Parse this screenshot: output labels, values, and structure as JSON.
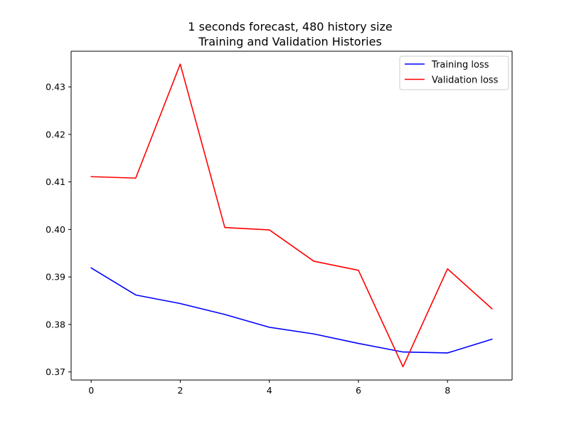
{
  "chart_data": {
    "type": "line",
    "title": "1 seconds forecast, 480 history size",
    "subtitle": "Training and Validation Histories",
    "xlabel": "",
    "ylabel": "",
    "x": [
      0,
      1,
      2,
      3,
      4,
      5,
      6,
      7,
      8,
      9
    ],
    "xlim": [
      -0.45,
      9.45
    ],
    "ylim": [
      0.3683,
      0.4375
    ],
    "xticks": [
      0,
      2,
      4,
      6,
      8
    ],
    "xtick_labels": [
      "0",
      "2",
      "4",
      "6",
      "8"
    ],
    "yticks": [
      0.37,
      0.38,
      0.39,
      0.4,
      0.41,
      0.42,
      0.43
    ],
    "ytick_labels": [
      "0.37",
      "0.38",
      "0.39",
      "0.40",
      "0.41",
      "0.42",
      "0.43"
    ],
    "grid": false,
    "legend_position": "top-right",
    "series": [
      {
        "name": "Training loss",
        "color": "#0000ff",
        "values": [
          0.3919,
          0.3862,
          0.3844,
          0.3821,
          0.3794,
          0.378,
          0.376,
          0.3742,
          0.374,
          0.3769
        ]
      },
      {
        "name": "Validation loss",
        "color": "#ff0000",
        "values": [
          0.4111,
          0.4108,
          0.4348,
          0.4004,
          0.3999,
          0.3933,
          0.3914,
          0.3711,
          0.3917,
          0.3833
        ]
      }
    ]
  }
}
